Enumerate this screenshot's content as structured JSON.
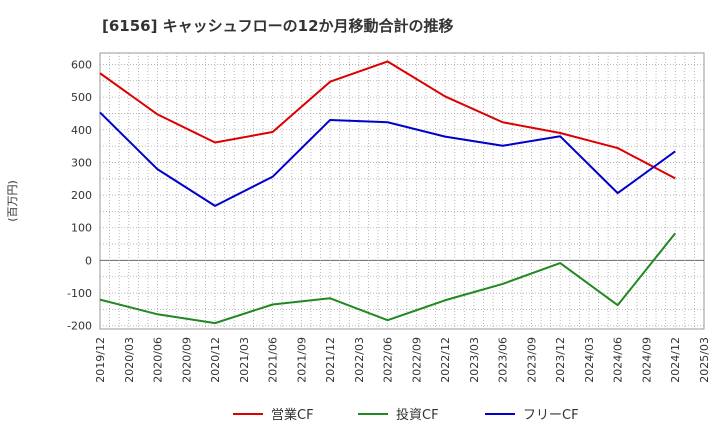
{
  "chart_data": {
    "type": "line",
    "title": "[6156]  キャッシュフローの12か月移動合計の推移",
    "ylabel": "(百万円)",
    "xlabel": "",
    "ylim": [
      -210,
      635
    ],
    "yticks": [
      600,
      500,
      400,
      300,
      200,
      100,
      0,
      -100,
      -200
    ],
    "x_ticks": [
      "2019/12",
      "2020/03",
      "2020/06",
      "2020/09",
      "2020/12",
      "2021/03",
      "2021/06",
      "2021/09",
      "2021/12",
      "2022/03",
      "2022/06",
      "2022/09",
      "2022/12",
      "2023/03",
      "2023/06",
      "2023/09",
      "2023/12",
      "2024/03",
      "2024/06",
      "2024/09",
      "2024/12",
      "2025/03"
    ],
    "grid": true,
    "legend_position": "bottom",
    "series": [
      {
        "name": "営業CF",
        "color": "#dd0000",
        "x": [
          "2019/12",
          "2020/06",
          "2020/12",
          "2021/06",
          "2021/12",
          "2022/06",
          "2022/12",
          "2023/06",
          "2023/12",
          "2024/06",
          "2024/12"
        ],
        "values": [
          573,
          447,
          361,
          393,
          547,
          609,
          502,
          423,
          390,
          344,
          251
        ]
      },
      {
        "name": "投資CF",
        "color": "#228822",
        "x": [
          "2019/12",
          "2020/06",
          "2020/12",
          "2021/06",
          "2021/12",
          "2022/06",
          "2022/12",
          "2023/06",
          "2023/12",
          "2024/06",
          "2024/12"
        ],
        "values": [
          -120,
          -165,
          -192,
          -135,
          -116,
          -183,
          -122,
          -72,
          -8,
          -137,
          83
        ]
      },
      {
        "name": "フリーCF",
        "color": "#0000cc",
        "x": [
          "2019/12",
          "2020/06",
          "2020/12",
          "2021/06",
          "2021/12",
          "2022/06",
          "2022/12",
          "2023/06",
          "2023/12",
          "2024/06",
          "2024/12"
        ],
        "values": [
          453,
          279,
          167,
          256,
          430,
          423,
          379,
          351,
          380,
          206,
          334
        ]
      }
    ]
  }
}
